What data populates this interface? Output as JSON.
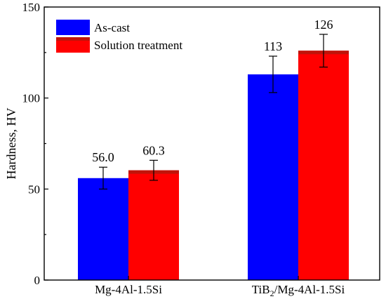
{
  "chart_data": {
    "type": "bar",
    "title": "",
    "xlabel": "",
    "ylabel": "Hardness, HV",
    "ylim": [
      0,
      150
    ],
    "yticks": [
      0,
      50,
      100,
      150
    ],
    "grid": false,
    "legend_position": "top-left",
    "categories": [
      "Mg-4Al-1.5Si",
      "TiB2/Mg-4Al-1.5Si"
    ],
    "category_labels": [
      {
        "main": "Mg-4Al-1.5Si",
        "sub": "",
        "rest": ""
      },
      {
        "main": "TiB",
        "sub": "2",
        "rest": "/Mg-4Al-1.5Si"
      }
    ],
    "series": [
      {
        "name": "As-cast",
        "color": "#0000ff",
        "values": [
          56.0,
          113
        ],
        "errors": [
          6,
          10
        ],
        "labels": [
          "56.0",
          "113"
        ]
      },
      {
        "name": "Solution treatment",
        "color": "#ff0000",
        "cap_color": "#c0140a",
        "values": [
          60.3,
          126
        ],
        "errors": [
          5.5,
          9
        ],
        "labels": [
          "60.3",
          "126"
        ]
      }
    ]
  }
}
